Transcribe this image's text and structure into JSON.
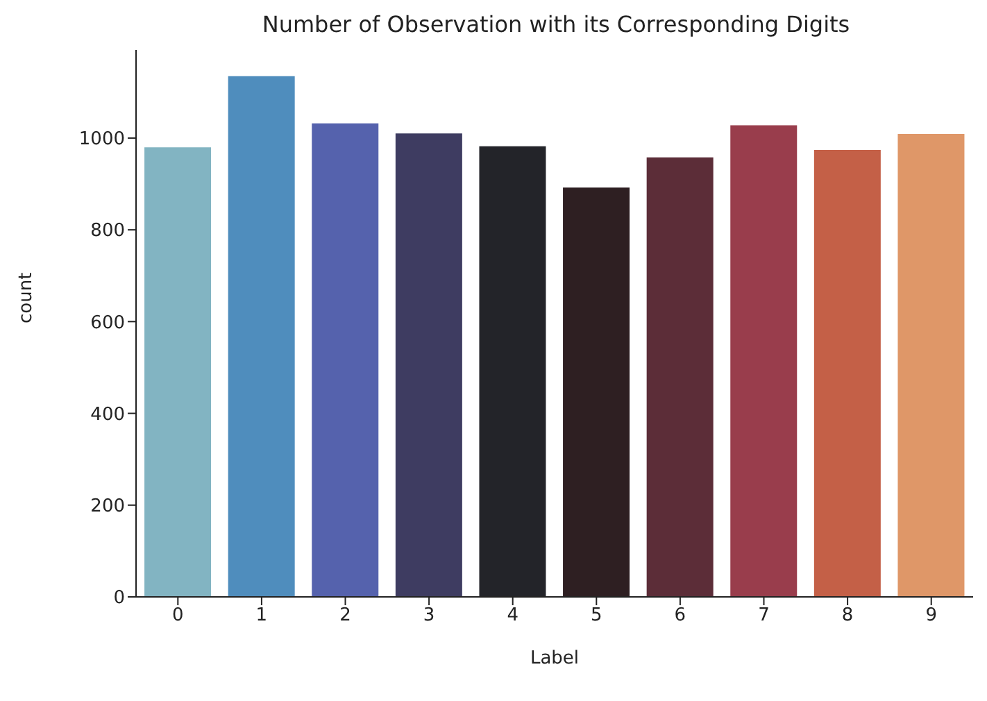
{
  "chart_data": {
    "type": "bar",
    "title": "Number of Observation with its Corresponding Digits",
    "xlabel": "Label",
    "ylabel": "count",
    "categories": [
      "0",
      "1",
      "2",
      "3",
      "4",
      "5",
      "6",
      "7",
      "8",
      "9"
    ],
    "values": [
      980,
      1135,
      1032,
      1010,
      982,
      892,
      958,
      1028,
      974,
      1009
    ],
    "colors": [
      "#82b4c2",
      "#4f8dbd",
      "#5562ad",
      "#3e3c61",
      "#232429",
      "#2e1f22",
      "#5c2d38",
      "#993d4c",
      "#c46047",
      "#df9768"
    ],
    "ylim": [
      0,
      1192
    ],
    "yticks": [
      0,
      200,
      400,
      600,
      800,
      1000
    ],
    "grid": false,
    "legend": false
  }
}
